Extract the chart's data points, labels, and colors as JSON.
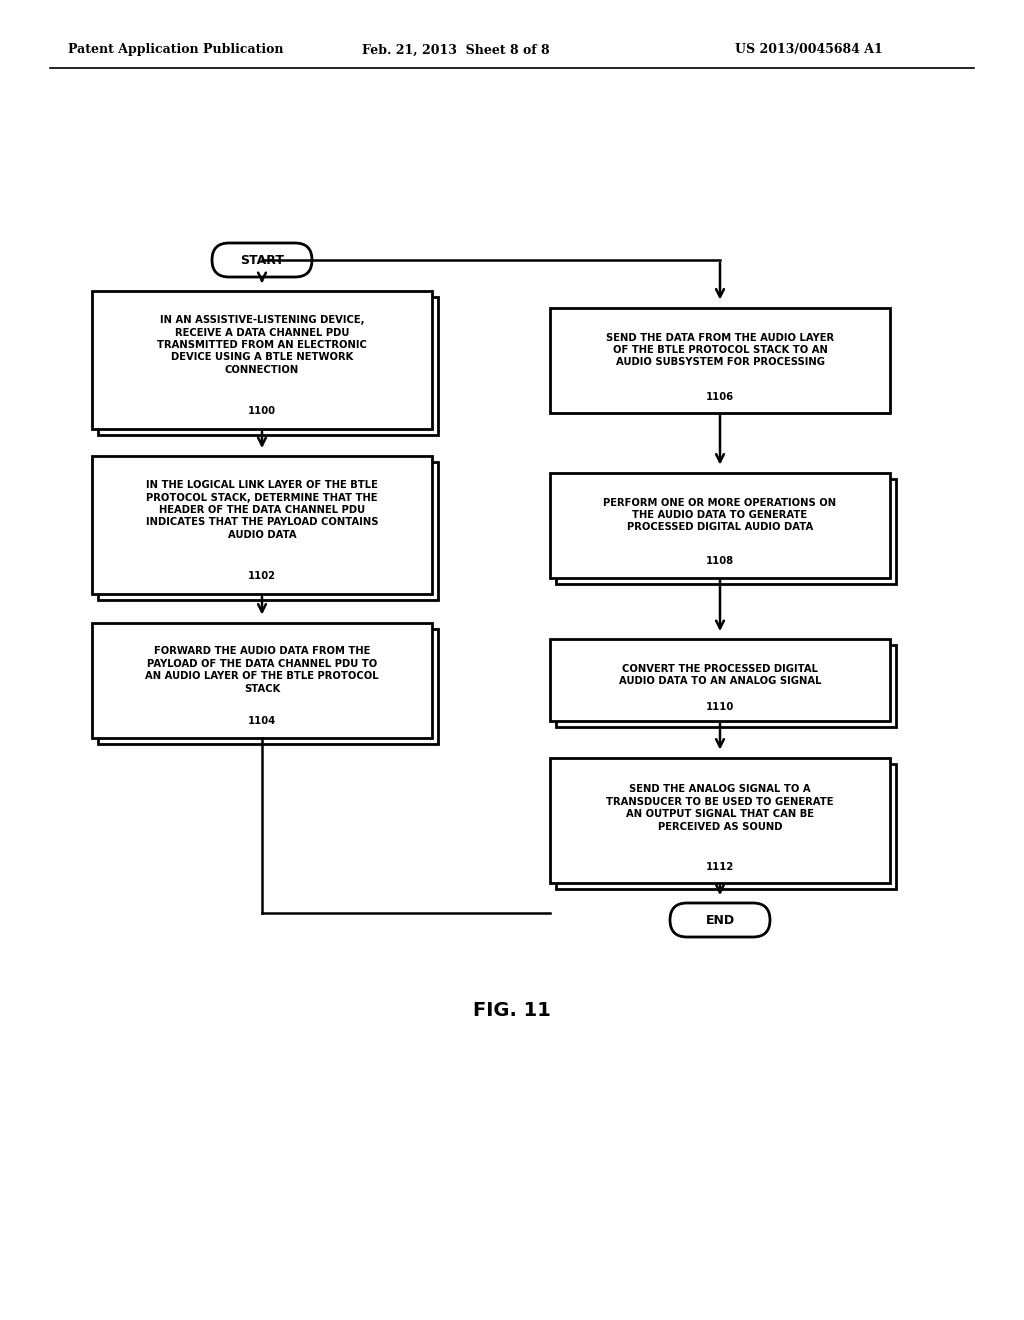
{
  "bg_color": "#ffffff",
  "header_left": "Patent Application Publication",
  "header_mid": "Feb. 21, 2013  Sheet 8 of 8",
  "header_right": "US 2013/0045684 A1",
  "fig_label": "FIG. 11",
  "start_label": "START",
  "end_label": "END",
  "box1100_text": "IN AN ASSISTIVE-LISTENING DEVICE,\nRECEIVE A DATA CHANNEL PDU\nTRANSMITTED FROM AN ELECTRONIC\nDEVICE USING A BTLE NETWORK\nCONNECTION",
  "box1100_num": "1100",
  "box1102_text": "IN THE LOGICAL LINK LAYER OF THE BTLE\nPROTOCOL STACK, DETERMINE THAT THE\nHEADER OF THE DATA CHANNEL PDU\nINDICATES THAT THE PAYLOAD CONTAINS\nAUDIO DATA",
  "box1102_num": "1102",
  "box1104_text": "FORWARD THE AUDIO DATA FROM THE\nPAYLOAD OF THE DATA CHANNEL PDU TO\nAN AUDIO LAYER OF THE BTLE PROTOCOL\nSTACK",
  "box1104_num": "1104",
  "box1106_text": "SEND THE DATA FROM THE AUDIO LAYER\nOF THE BTLE PROTOCOL STACK TO AN\nAUDIO SUBSYSTEM FOR PROCESSING",
  "box1106_num": "1106",
  "box1108_text": "PERFORM ONE OR MORE OPERATIONS ON\nTHE AUDIO DATA TO GENERATE\nPROCESSED DIGITAL AUDIO DATA",
  "box1108_num": "1108",
  "box1110_text": "CONVERT THE PROCESSED DIGITAL\nAUDIO DATA TO AN ANALOG SIGNAL",
  "box1110_num": "1110",
  "box1112_text": "SEND THE ANALOG SIGNAL TO A\nTRANSDUCER TO BE USED TO GENERATE\nAN OUTPUT SIGNAL THAT CAN BE\nPERCEIVED AS SOUND",
  "box1112_num": "1112"
}
